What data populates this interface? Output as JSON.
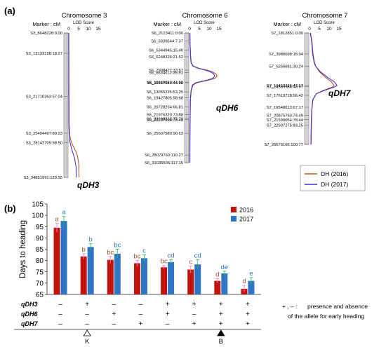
{
  "panel_labels": {
    "a": "(a)",
    "b": "(b)"
  },
  "chart_data": [
    {
      "type": "line",
      "panel": "(a)",
      "marker_label": "Marker : cM",
      "lod_label": "LOD Score",
      "lod_ticks": [
        "0",
        "5",
        "10",
        "15"
      ],
      "xlim": [
        0,
        15
      ],
      "legend": {
        "placement": "bottom-right",
        "entries": [
          {
            "name": "DH (2016)",
            "color": "#b5572a"
          },
          {
            "name": "DH (2017)",
            "color": "#4b2fc9"
          }
        ]
      },
      "chromosomes": [
        {
          "title": "Chromosome 3",
          "length_cM": 129.55,
          "markers": [
            {
              "label": "S3_8648228:0.00",
              "cM": 0
            },
            {
              "label": "S3_13133198:18.27",
              "cM": 18.27
            },
            {
              "label": "S3_21710263:57.04",
              "cM": 57.04
            },
            {
              "label": "S3_25404497:89.93",
              "cM": 89.93
            },
            {
              "label": "S3_28142709:98.50",
              "cM": 98.5
            },
            {
              "label": "S3_34851991:129.55",
              "cM": 129.55
            }
          ],
          "qtl_label": "qDH3",
          "series": [
            {
              "name": "DH (2016)",
              "points": [
                [
                  0,
                  0
                ],
                [
                  80,
                  0.1
                ],
                [
                  92,
                  0.5
                ],
                [
                  98,
                  1.3
                ],
                [
                  104,
                  3.0
                ],
                [
                  110,
                  4.4
                ],
                [
                  118,
                  5.1
                ],
                [
                  129.55,
                  5.2
                ]
              ]
            },
            {
              "name": "DH (2017)",
              "points": [
                [
                  0,
                  0
                ],
                [
                  85,
                  0.1
                ],
                [
                  98,
                  0.6
                ],
                [
                  105,
                  1.6
                ],
                [
                  112,
                  2.9
                ],
                [
                  120,
                  3.7
                ],
                [
                  129.55,
                  3.8
                ]
              ]
            }
          ]
        },
        {
          "title": "Chromosome 6",
          "length_cM": 117.15,
          "markers": [
            {
              "label": "S6_2123411:0.00",
              "cM": 0
            },
            {
              "label": "S6_3339544:7.37",
              "cM": 7.37
            },
            {
              "label": "S6_5344945:15.40",
              "cM": 15.4
            },
            {
              "label": "S6_6248326:21.52",
              "cM": 21.52
            },
            {
              "label": "S6_7908477:33.57",
              "cM": 33.57
            },
            {
              "label": "S6_8634012:35.91",
              "cM": 35.91
            },
            {
              "label": "S6_10449013:44.62",
              "cM": 44.62
            },
            {
              "label": "S6_11017344:44.98",
              "cM": 44.98
            },
            {
              "label": "S6_13055235:53.25",
              "cM": 53.25
            },
            {
              "label": "S6_19427805:58.68",
              "cM": 58.68
            },
            {
              "label": "S6_20728254:66.81",
              "cM": 66.81
            },
            {
              "label": "S6_21976320:73.88",
              "cM": 73.88
            },
            {
              "label": "S6_22698235:77.73",
              "cM": 77.73
            },
            {
              "label": "S6_23237994:78.45",
              "cM": 78.45
            },
            {
              "label": "S6_25507580:90.63",
              "cM": 90.63
            },
            {
              "label": "S6_28079760:110.27",
              "cM": 110.27
            },
            {
              "label": "S6_31035506:117.15",
              "cM": 117.15
            }
          ],
          "qtl_label": "qDH6",
          "series": [
            {
              "name": "DH (2016)",
              "points": [
                [
                  0,
                  0.2
                ],
                [
                  10,
                  0.3
                ],
                [
                  20,
                  0.5
                ],
                [
                  27,
                  0.9
                ],
                [
                  30,
                  2.0
                ],
                [
                  32,
                  5.0
                ],
                [
                  33.57,
                  9.0
                ],
                [
                  35,
                  11.5
                ],
                [
                  37,
                  13.5
                ],
                [
                  39,
                  14.0
                ],
                [
                  41,
                  13.0
                ],
                [
                  43,
                  9.0
                ],
                [
                  44.8,
                  4.0
                ],
                [
                  47,
                  1.8
                ],
                [
                  52,
                  0.9
                ],
                [
                  60,
                  0.5
                ],
                [
                  80,
                  0.3
                ],
                [
                  100,
                  0.2
                ],
                [
                  117.15,
                  0.2
                ]
              ]
            },
            {
              "name": "DH (2017)",
              "points": [
                [
                  0,
                  0.2
                ],
                [
                  10,
                  0.3
                ],
                [
                  20,
                  0.5
                ],
                [
                  27,
                  0.8
                ],
                [
                  30,
                  1.8
                ],
                [
                  32,
                  4.5
                ],
                [
                  33.57,
                  8.0
                ],
                [
                  35,
                  10.5
                ],
                [
                  37,
                  12.3
                ],
                [
                  39,
                  12.8
                ],
                [
                  41,
                  12.0
                ],
                [
                  43,
                  8.0
                ],
                [
                  44.8,
                  3.5
                ],
                [
                  47,
                  1.5
                ],
                [
                  52,
                  0.8
                ],
                [
                  60,
                  0.4
                ],
                [
                  80,
                  0.3
                ],
                [
                  100,
                  0.2
                ],
                [
                  117.15,
                  0.2
                ]
              ]
            }
          ]
        },
        {
          "title": "Chromosome 7",
          "length_cM": 100.77,
          "markers": [
            {
              "label": "S7_1812851:0.00",
              "cM": 0
            },
            {
              "label": "S7_3988698:18.94",
              "cM": 18.94
            },
            {
              "label": "S7_5256691:30.24",
              "cM": 30.24
            },
            {
              "label": "S7_10453336:47.57",
              "cM": 47.57
            },
            {
              "label": "S7_14589984:48.37",
              "cM": 48.37
            },
            {
              "label": "S7_17610718:56.42",
              "cM": 56.42
            },
            {
              "label": "S7_19548613:67.17",
              "cM": 67.17
            },
            {
              "label": "S7_20875793:74.49",
              "cM": 74.49
            },
            {
              "label": "S7_21590054:78.44",
              "cM": 78.44
            },
            {
              "label": "S7_22937275:83.25",
              "cM": 83.25
            },
            {
              "label": "S7_26676166:100.77",
              "cM": 100.77
            }
          ],
          "qtl_label": "qDH7",
          "series": [
            {
              "name": "DH (2016)",
              "points": [
                [
                  0,
                  0.5
                ],
                [
                  5,
                  1.0
                ],
                [
                  10,
                  1.4
                ],
                [
                  15,
                  1.6
                ],
                [
                  20,
                  1.9
                ],
                [
                  26,
                  2.5
                ],
                [
                  30,
                  3.2
                ],
                [
                  35,
                  5.0
                ],
                [
                  40,
                  8.0
                ],
                [
                  44,
                  11.0
                ],
                [
                  47.5,
                  12.5
                ],
                [
                  49,
                  11.5
                ],
                [
                  52,
                  7.0
                ],
                [
                  55,
                  3.5
                ],
                [
                  60,
                  1.8
                ],
                [
                  70,
                  1.2
                ],
                [
                  80,
                  1.0
                ],
                [
                  90,
                  0.9
                ],
                [
                  100.77,
                  0.8
                ]
              ]
            },
            {
              "name": "DH (2017)",
              "points": [
                [
                  0,
                  0.4
                ],
                [
                  5,
                  0.9
                ],
                [
                  10,
                  1.2
                ],
                [
                  15,
                  1.4
                ],
                [
                  20,
                  1.7
                ],
                [
                  26,
                  2.3
                ],
                [
                  30,
                  3.0
                ],
                [
                  35,
                  5.5
                ],
                [
                  40,
                  9.0
                ],
                [
                  44,
                  12.5
                ],
                [
                  47.5,
                  14.0
                ],
                [
                  49,
                  12.5
                ],
                [
                  52,
                  7.5
                ],
                [
                  55,
                  3.5
                ],
                [
                  60,
                  1.7
                ],
                [
                  70,
                  1.1
                ],
                [
                  80,
                  0.9
                ],
                [
                  90,
                  0.8
                ],
                [
                  100.77,
                  0.7
                ]
              ]
            }
          ]
        }
      ]
    },
    {
      "type": "bar",
      "panel": "(b)",
      "ylabel": "Days to heading",
      "ylim": [
        65,
        105
      ],
      "yticks": [
        "65",
        "70",
        "75",
        "80",
        "85",
        "90",
        "95",
        "100",
        "105"
      ],
      "series": [
        {
          "name": "2016",
          "color": "#c0140c",
          "values": [
            94.5,
            81.8,
            80.3,
            78.8,
            77.0,
            76.0,
            71.0,
            67.5
          ],
          "errors": [
            2.0,
            1.2,
            1.5,
            1.3,
            0.8,
            1.5,
            1.0,
            1.5
          ],
          "letters": [
            "a",
            "b",
            "bc",
            "bc",
            "bc",
            "c",
            "d",
            "d"
          ],
          "letter_color": "#a0522d"
        },
        {
          "name": "2017",
          "color": "#2e75c6",
          "values": [
            97.5,
            86.0,
            83.0,
            81.0,
            79.3,
            78.3,
            74.3,
            71.0
          ],
          "errors": [
            2.0,
            1.5,
            2.0,
            1.5,
            1.0,
            2.0,
            1.0,
            1.5
          ],
          "letters": [
            "a",
            "b",
            "bc",
            "c",
            "cd",
            "cd",
            "de",
            "e"
          ],
          "letter_color": "#2e75c6"
        }
      ],
      "genotype_rows": [
        {
          "label": "qDH3",
          "signs": [
            "–",
            "+",
            "–",
            "–",
            "+",
            "+",
            "+",
            "+"
          ]
        },
        {
          "label": "qDH6",
          "signs": [
            "–",
            "–",
            "+",
            "–",
            "+",
            "–",
            "+",
            "+"
          ]
        },
        {
          "label": "qDH7",
          "signs": [
            "–",
            "–",
            "–",
            "+",
            "–",
            "+",
            "+",
            "+"
          ]
        }
      ],
      "sign_key": "+ , –  :",
      "note_line1": "presence and absence",
      "note_line2": "of the allele for early heading",
      "cultivar_marks": [
        {
          "group": 1,
          "label": "K",
          "fill": "#ffffff"
        },
        {
          "group": 6,
          "label": "B",
          "fill": "#000000"
        }
      ]
    }
  ]
}
